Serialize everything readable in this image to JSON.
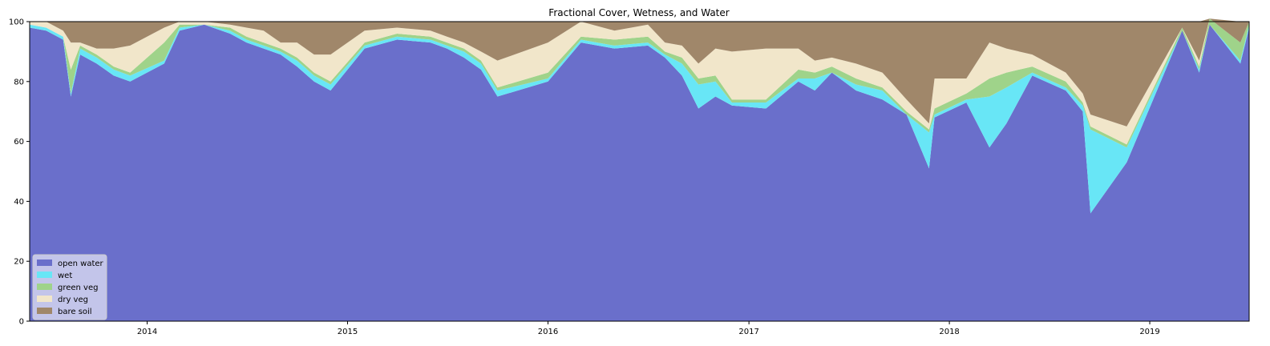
{
  "chart_data": {
    "type": "area",
    "stacked": true,
    "title": "Fractional Cover, Wetness, and Water",
    "xlabel": "",
    "ylabel": "",
    "xlim": [
      "2013-06-01",
      "2019-07-01"
    ],
    "ylim": [
      0,
      100
    ],
    "x_ticks": [
      "2014",
      "2015",
      "2016",
      "2017",
      "2018",
      "2019"
    ],
    "y_ticks": [
      "0",
      "20",
      "40",
      "60",
      "80",
      "100"
    ],
    "legend_position": "lower-left",
    "x": [
      "2013-06-01",
      "2013-07-01",
      "2013-08-01",
      "2013-08-15",
      "2013-09-01",
      "2013-10-01",
      "2013-11-01",
      "2013-12-01",
      "2014-02-01",
      "2014-03-01",
      "2014-04-15",
      "2014-06-01",
      "2014-07-01",
      "2014-08-01",
      "2014-09-01",
      "2014-10-01",
      "2014-11-01",
      "2014-12-01",
      "2015-02-01",
      "2015-04-01",
      "2015-06-01",
      "2015-07-01",
      "2015-08-01",
      "2015-09-01",
      "2015-10-01",
      "2016-01-01",
      "2016-03-01",
      "2016-05-01",
      "2016-07-01",
      "2016-08-01",
      "2016-09-01",
      "2016-10-01",
      "2016-11-01",
      "2016-12-01",
      "2017-02-01",
      "2017-04-01",
      "2017-05-01",
      "2017-06-01",
      "2017-07-15",
      "2017-09-01",
      "2017-10-15",
      "2017-11-25",
      "2017-12-05",
      "2018-02-01",
      "2018-03-15",
      "2018-04-15",
      "2018-06-01",
      "2018-08-01",
      "2018-09-01",
      "2018-09-15",
      "2018-11-20",
      "2019-03-01",
      "2019-04-01",
      "2019-04-20",
      "2019-06-15",
      "2019-07-01"
    ],
    "series": [
      {
        "name": "open water",
        "color": "#6a6fcb",
        "values": [
          98,
          97,
          94,
          75,
          89,
          86,
          82,
          80,
          86,
          97,
          99,
          96,
          93,
          91,
          89,
          85,
          80,
          77,
          91,
          94,
          93,
          91,
          88,
          84,
          75,
          80,
          93,
          91,
          92,
          88,
          82,
          71,
          75,
          72,
          71,
          80,
          77,
          83,
          77,
          74,
          69,
          51,
          68,
          73,
          58,
          66,
          82,
          77,
          70,
          36,
          53,
          97,
          83,
          99,
          86,
          98
        ]
      },
      {
        "name": "wet",
        "color": "#68e6f6",
        "values": [
          1,
          1,
          1,
          1,
          2,
          2,
          2,
          2,
          1,
          1,
          0,
          1,
          1,
          1,
          1,
          2,
          2,
          2,
          1,
          1,
          1,
          1,
          2,
          2,
          2,
          1,
          1,
          1,
          1,
          1,
          4,
          8,
          5,
          1,
          2,
          1,
          4,
          0,
          2,
          3,
          0,
          12,
          1,
          1,
          17,
          12,
          1,
          1,
          2,
          28,
          5,
          0,
          1,
          0,
          1,
          1
        ]
      },
      {
        "name": "green veg",
        "color": "#9fd38a",
        "values": [
          0,
          0,
          0,
          8,
          1,
          1,
          1,
          1,
          6,
          1,
          0,
          1,
          1,
          1,
          1,
          1,
          1,
          1,
          1,
          1,
          1,
          1,
          1,
          1,
          1,
          2,
          1,
          2,
          2,
          1,
          2,
          2,
          2,
          1,
          1,
          3,
          2,
          2,
          2,
          1,
          1,
          1,
          2,
          2,
          6,
          5,
          2,
          2,
          1,
          1,
          1,
          1,
          1,
          2,
          6,
          1
        ]
      },
      {
        "name": "dry veg",
        "color": "#f1e6ca",
        "values": [
          1,
          2,
          2,
          9,
          1,
          2,
          6,
          9,
          5,
          1,
          1,
          1,
          3,
          4,
          2,
          5,
          6,
          9,
          4,
          2,
          2,
          2,
          2,
          3,
          9,
          10,
          5,
          3,
          4,
          3,
          4,
          5,
          9,
          16,
          17,
          7,
          4,
          3,
          5,
          5,
          4,
          2,
          10,
          5,
          12,
          8,
          4,
          3,
          3,
          4,
          6,
          0,
          2,
          0,
          0,
          0
        ]
      },
      {
        "name": "bare soil",
        "color": "#a0876a",
        "values": [
          0,
          0,
          3,
          7,
          7,
          9,
          9,
          8,
          2,
          0,
          0,
          1,
          2,
          3,
          7,
          7,
          11,
          11,
          3,
          2,
          3,
          5,
          7,
          10,
          13,
          7,
          0,
          3,
          1,
          7,
          8,
          14,
          9,
          10,
          9,
          9,
          13,
          12,
          14,
          17,
          26,
          34,
          19,
          19,
          7,
          9,
          11,
          17,
          24,
          31,
          35,
          2,
          13,
          0,
          7,
          0
        ]
      }
    ]
  }
}
